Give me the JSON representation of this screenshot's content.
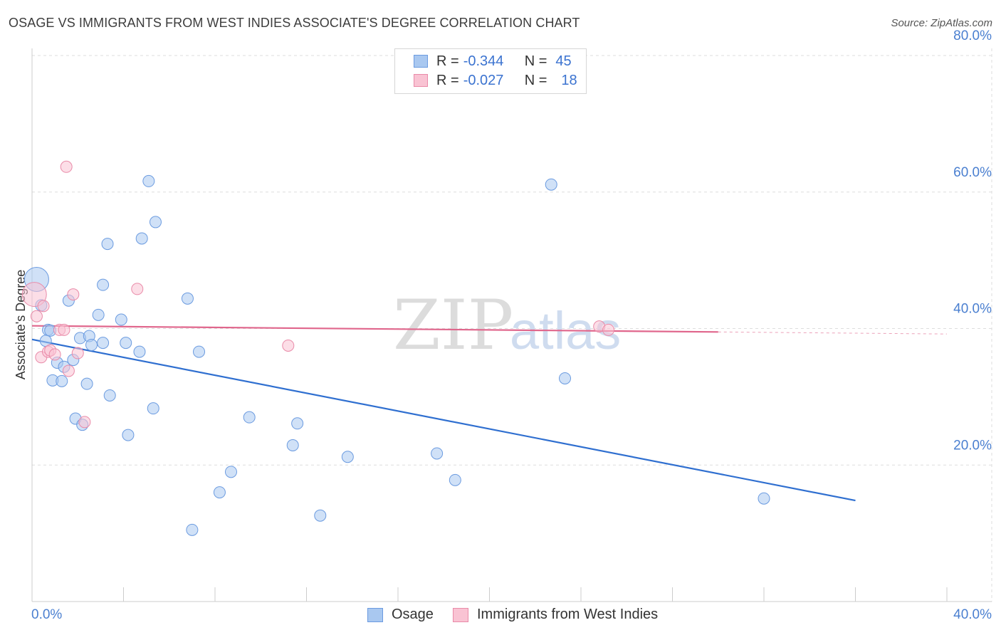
{
  "header": {
    "title": "OSAGE VS IMMIGRANTS FROM WEST INDIES ASSOCIATE'S DEGREE CORRELATION CHART",
    "source": "Source: ZipAtlas.com"
  },
  "watermark": {
    "zip": "ZIP",
    "atlas": "atlas"
  },
  "legend": {
    "rows": [
      {
        "r_label": "R =",
        "r_value": "-0.344",
        "n_label": "N =",
        "n_value": "45",
        "color": "#a9c8f0",
        "border": "#6b9be0"
      },
      {
        "r_label": "R =",
        "r_value": "-0.027",
        "n_label": "N =",
        "n_value": "18",
        "color": "#f9c3d3",
        "border": "#e98aa8"
      }
    ]
  },
  "bottom_legend": {
    "osage": "Osage",
    "west_indies": "Immigrants from West Indies"
  },
  "colors": {
    "osage_fill": "#a9c8f0",
    "osage_stroke": "#6b9be0",
    "osage_line": "#2f6fd0",
    "wi_fill": "#f9c3d3",
    "wi_stroke": "#e98aa8",
    "wi_line": "#e0668c",
    "grid": "#dddddd",
    "axis_text": "#4a7fd0"
  },
  "chart_data": {
    "type": "scatter",
    "title": "OSAGE VS IMMIGRANTS FROM WEST INDIES ASSOCIATE'S DEGREE CORRELATION CHART",
    "xlabel": "",
    "ylabel": "Associate's Degree",
    "xlim": [
      0,
      40
    ],
    "ylim": [
      0,
      80
    ],
    "x_tick_labels": [
      "0.0%",
      "40.0%"
    ],
    "y_tick_labels": [
      "20.0%",
      "40.0%",
      "60.0%",
      "80.0%"
    ],
    "y_ticks": [
      20,
      40,
      60,
      80
    ],
    "grid": true,
    "series": [
      {
        "name": "Osage",
        "R": -0.344,
        "N": 45,
        "trend": {
          "x": [
            0,
            36
          ],
          "y": [
            38.4,
            14.8
          ]
        },
        "points": [
          {
            "x": 0.2,
            "y": 47.2,
            "big": true
          },
          {
            "x": 0.4,
            "y": 43.4
          },
          {
            "x": 0.6,
            "y": 38.2
          },
          {
            "x": 0.7,
            "y": 39.8
          },
          {
            "x": 0.8,
            "y": 39.7
          },
          {
            "x": 0.9,
            "y": 32.4
          },
          {
            "x": 1.1,
            "y": 35.0
          },
          {
            "x": 1.3,
            "y": 32.3
          },
          {
            "x": 1.4,
            "y": 34.4
          },
          {
            "x": 1.6,
            "y": 44.1
          },
          {
            "x": 1.8,
            "y": 35.4
          },
          {
            "x": 1.9,
            "y": 26.8
          },
          {
            "x": 2.1,
            "y": 38.6
          },
          {
            "x": 2.2,
            "y": 25.9
          },
          {
            "x": 2.4,
            "y": 31.9
          },
          {
            "x": 2.5,
            "y": 38.9
          },
          {
            "x": 2.6,
            "y": 37.6
          },
          {
            "x": 2.9,
            "y": 42.0
          },
          {
            "x": 3.1,
            "y": 37.9
          },
          {
            "x": 3.1,
            "y": 46.4
          },
          {
            "x": 3.3,
            "y": 52.4
          },
          {
            "x": 3.4,
            "y": 30.2
          },
          {
            "x": 3.9,
            "y": 41.3
          },
          {
            "x": 4.1,
            "y": 37.9
          },
          {
            "x": 4.2,
            "y": 24.4
          },
          {
            "x": 4.7,
            "y": 36.6
          },
          {
            "x": 4.8,
            "y": 53.2
          },
          {
            "x": 5.1,
            "y": 61.6
          },
          {
            "x": 5.3,
            "y": 28.3
          },
          {
            "x": 5.4,
            "y": 55.6
          },
          {
            "x": 6.8,
            "y": 44.4
          },
          {
            "x": 7.0,
            "y": 10.5
          },
          {
            "x": 7.3,
            "y": 36.6
          },
          {
            "x": 8.2,
            "y": 16.0
          },
          {
            "x": 8.7,
            "y": 19.0
          },
          {
            "x": 9.5,
            "y": 27.0
          },
          {
            "x": 11.4,
            "y": 22.9
          },
          {
            "x": 11.6,
            "y": 26.1
          },
          {
            "x": 12.6,
            "y": 12.6
          },
          {
            "x": 13.8,
            "y": 21.2
          },
          {
            "x": 17.7,
            "y": 21.7
          },
          {
            "x": 18.5,
            "y": 17.8
          },
          {
            "x": 22.7,
            "y": 61.1
          },
          {
            "x": 23.3,
            "y": 32.7
          },
          {
            "x": 32.0,
            "y": 15.1
          }
        ]
      },
      {
        "name": "Immigrants from West Indies",
        "R": -0.027,
        "N": 18,
        "trend": {
          "x": [
            0,
            30
          ],
          "y": [
            40.4,
            39.5
          ]
        },
        "trend_extension": {
          "x": [
            30,
            40
          ],
          "y": [
            39.5,
            39.2
          ]
        },
        "points": [
          {
            "x": 0.1,
            "y": 45.0,
            "big": true
          },
          {
            "x": 0.2,
            "y": 41.8
          },
          {
            "x": 0.4,
            "y": 35.8
          },
          {
            "x": 0.5,
            "y": 43.3
          },
          {
            "x": 0.7,
            "y": 36.6
          },
          {
            "x": 0.8,
            "y": 36.8
          },
          {
            "x": 1.0,
            "y": 36.2
          },
          {
            "x": 1.2,
            "y": 39.8
          },
          {
            "x": 1.4,
            "y": 39.8
          },
          {
            "x": 1.5,
            "y": 63.7
          },
          {
            "x": 1.6,
            "y": 33.8
          },
          {
            "x": 1.8,
            "y": 45.0
          },
          {
            "x": 2.0,
            "y": 36.4
          },
          {
            "x": 2.3,
            "y": 26.3
          },
          {
            "x": 4.6,
            "y": 45.8
          },
          {
            "x": 11.2,
            "y": 37.5
          },
          {
            "x": 24.8,
            "y": 40.3
          },
          {
            "x": 25.2,
            "y": 39.8
          }
        ]
      }
    ]
  }
}
